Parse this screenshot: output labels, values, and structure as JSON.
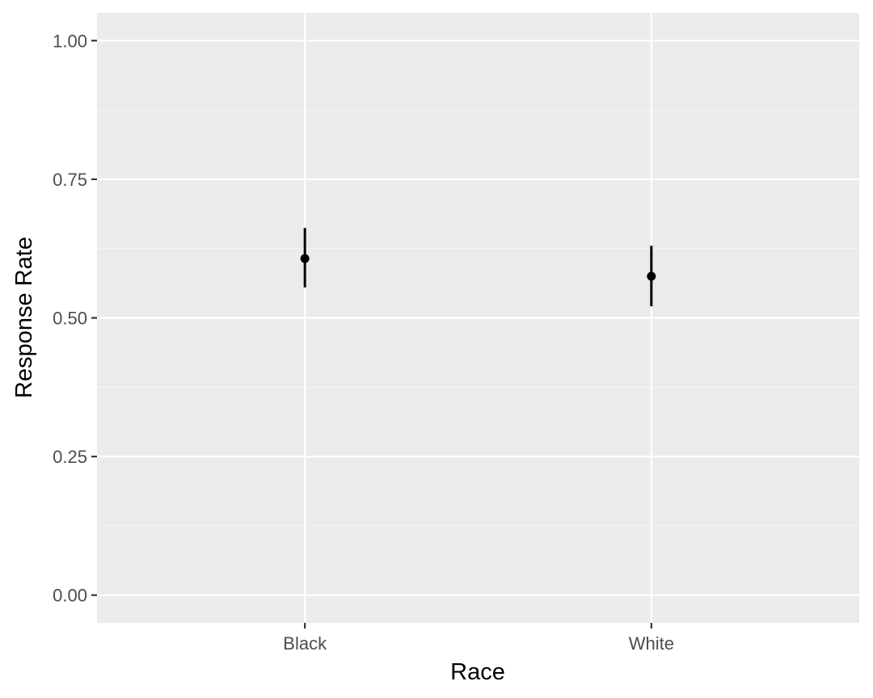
{
  "chart_data": {
    "type": "scatter",
    "subtype": "point-with-error-bars",
    "title": "",
    "xlabel": "Race",
    "ylabel": "Response Rate",
    "categories": [
      "Black",
      "White"
    ],
    "points": [
      {
        "x": "Black",
        "y": 0.607,
        "ymin": 0.555,
        "ymax": 0.662
      },
      {
        "x": "White",
        "y": 0.575,
        "ymin": 0.521,
        "ymax": 0.63
      }
    ],
    "ylim": [
      -0.05,
      1.05
    ],
    "y_ticks": [
      0.0,
      0.25,
      0.5,
      0.75,
      1.0
    ],
    "y_tick_labels": [
      "0.00",
      "0.25",
      "0.50",
      "0.75",
      "1.00"
    ],
    "grid": true,
    "legend": "none",
    "colors": {
      "panel_background": "#ebebeb",
      "grid_major": "#ffffff",
      "grid_minor": "#f5f5f5",
      "point": "#000000",
      "tick_text": "#4d4d4d",
      "axis_title": "#000000"
    }
  }
}
